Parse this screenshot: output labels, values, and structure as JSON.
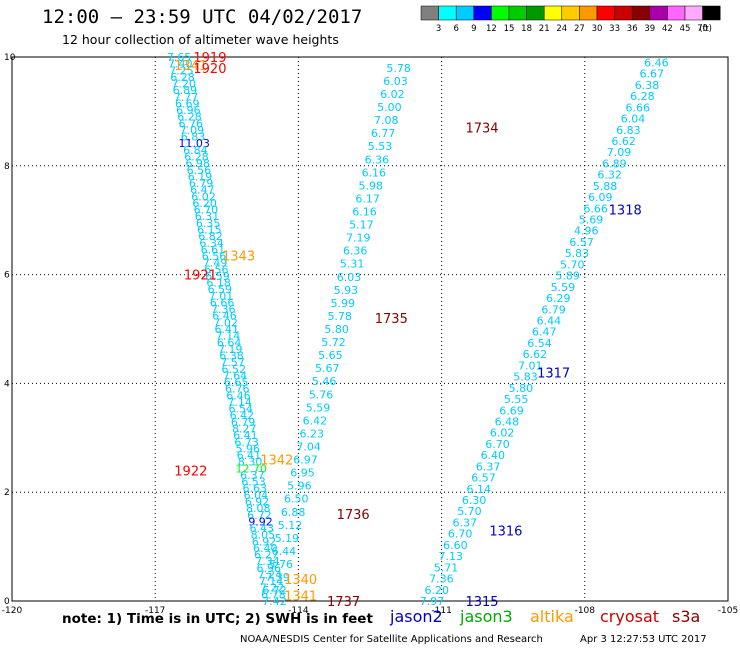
{
  "title": "12:00 – 23:59 UTC 04/02/2017",
  "subtitle": "12 hour collection of altimeter wave heights",
  "note": "note: 1) Time is in UTC; 2) SWH is in feet",
  "credit": "NOAA/NESDIS Center for Satellite Applications and Research",
  "timestamp": "Apr  3 12:27:53 UTC 2017",
  "satellites": [
    {
      "name": "jason2",
      "color": "#0000cc"
    },
    {
      "name": "jason3",
      "color": "#00aa00"
    },
    {
      "name": "altika",
      "color": "#ff9900"
    },
    {
      "name": "cryosat",
      "color": "#cc0000"
    },
    {
      "name": "s3a",
      "color": "#880000"
    }
  ],
  "colorbar": {
    "unit": "(ft)",
    "labels": [
      "3",
      "6",
      "9",
      "12",
      "15",
      "18",
      "21",
      "24",
      "27",
      "30",
      "33",
      "36",
      "39",
      "42",
      "45",
      "70"
    ],
    "colors": [
      "#808080",
      "#00ffff",
      "#00ccff",
      "#0000ff",
      "#00ff00",
      "#00cc00",
      "#009900",
      "#ffff00",
      "#ffcc00",
      "#ff9900",
      "#ff0000",
      "#cc0000",
      "#880000",
      "#aa00aa",
      "#ff66ff",
      "#ffaaff",
      "#000000"
    ]
  },
  "chart_data": {
    "type": "scatter",
    "xlim": [
      -120,
      -105
    ],
    "ylim": [
      0,
      10
    ],
    "x_ticks": [
      "-120",
      "-117",
      "-114",
      "-111",
      "-108",
      "-105"
    ],
    "y_ticks": [
      "0",
      "2",
      "4",
      "6",
      "8",
      "10"
    ],
    "grid": true,
    "tracks": [
      {
        "values": [
          "7.65",
          "7.40",
          "7.25",
          "6.28",
          "7.20",
          "6.89",
          "7.77",
          "6.69",
          "6.96",
          "6.28",
          "6.76",
          "7.09",
          "6.83",
          "11.03",
          "6.84",
          "6.28",
          "6.98",
          "6.56",
          "6.19",
          "6.79",
          "6.47",
          "6.02",
          "6.20",
          "6.70",
          "6.31",
          "6.35",
          "6.15",
          "6.82",
          "6.34",
          "6.61",
          "6.56",
          "7.49",
          "6.56",
          "6.59",
          "6.18",
          "6.59",
          "7.01",
          "6.66",
          "7.36",
          "6.46",
          "7.02",
          "6.41",
          "7.14",
          "6.64",
          "7.19",
          "6.38",
          "7.57",
          "6.52",
          "7.64",
          "6.65",
          "6.76",
          "6.46",
          "7.14",
          "6.54",
          "6.42",
          "6.79",
          "8.27",
          "6.41",
          "6.73",
          "5.96",
          "6.41",
          "8.30",
          "12.70",
          "6.37",
          "6.53",
          "6.63",
          "6.04",
          "6.92",
          "8.08",
          "6.72",
          "9.92",
          "6.43",
          "8.05",
          "6.92",
          "6.40",
          "6.27",
          "7.34",
          "6.96",
          "7.24",
          "7.14",
          "7.22",
          "6.78",
          "7.42"
        ],
        "x0": -116.5,
        "y0": 10.0,
        "x1": -114.5,
        "y1": 0.0
      },
      {
        "values": [
          "5.78",
          "6.03",
          "6.02",
          "5.00",
          "7.08",
          "6.77",
          "5.53",
          "6.36",
          "6.16",
          "5.98",
          "6.17",
          "6.16",
          "5.17",
          "7.19",
          "6.36",
          "5.31",
          "6.03",
          "5.93",
          "5.99",
          "5.78",
          "5.80",
          "5.72",
          "5.65",
          "5.67",
          "5.46",
          "5.76",
          "5.59",
          "6.42",
          "6.23",
          "7.04",
          "6.97",
          "6.95",
          "5.96",
          "6.50",
          "6.88",
          "5.12",
          "5.19",
          "6.44",
          "5.76",
          "7.39",
          "6.72"
        ],
        "x0": -111.9,
        "y0": 9.8,
        "x1": -114.5,
        "y1": 0.2
      },
      {
        "values": [
          "6.46",
          "6.67",
          "6.38",
          "6.28",
          "6.66",
          "6.04",
          "6.83",
          "6.62",
          "7.09",
          "6.89",
          "6.32",
          "5.88",
          "6.09",
          "6.66",
          "5.69",
          "4.96",
          "6.57",
          "5.83",
          "5.70",
          "5.89",
          "5.59",
          "6.29",
          "6.79",
          "6.44",
          "6.47",
          "6.54",
          "6.62",
          "7.01",
          "5.83",
          "5.80",
          "5.55",
          "6.69",
          "6.48",
          "6.02",
          "6.70",
          "6.40",
          "6.37",
          "6.57",
          "6.14",
          "6.30",
          "5.70",
          "6.37",
          "6.70",
          "6.60",
          "7.13",
          "5.71",
          "7.36",
          "6.20",
          "7.97"
        ],
        "x0": -106.5,
        "y0": 9.9,
        "x1": -111.2,
        "y1": 0.0
      }
    ],
    "annotations": [
      {
        "text": "1919",
        "x": -116.2,
        "y": 10.0,
        "color": "#ff0000"
      },
      {
        "text": "1341",
        "x": -116.6,
        "y": 9.85,
        "color": "#ff9900"
      },
      {
        "text": "1920",
        "x": -116.2,
        "y": 9.8,
        "color": "#ff0000"
      },
      {
        "text": "1734",
        "x": -110.5,
        "y": 8.7,
        "color": "#880000"
      },
      {
        "text": "1318",
        "x": -107.5,
        "y": 7.2,
        "color": "#0000cc"
      },
      {
        "text": "1343",
        "x": -115.6,
        "y": 6.35,
        "color": "#ff9900"
      },
      {
        "text": "1921",
        "x": -116.4,
        "y": 6.0,
        "color": "#ff0000"
      },
      {
        "text": "1735",
        "x": -112.4,
        "y": 5.2,
        "color": "#880000"
      },
      {
        "text": "1317",
        "x": -109.0,
        "y": 4.2,
        "color": "#0000cc"
      },
      {
        "text": "1342",
        "x": -114.8,
        "y": 2.6,
        "color": "#ff9900"
      },
      {
        "text": "1922",
        "x": -116.6,
        "y": 2.4,
        "color": "#ff0000"
      },
      {
        "text": "1736",
        "x": -113.2,
        "y": 1.6,
        "color": "#880000"
      },
      {
        "text": "1316",
        "x": -110.0,
        "y": 1.3,
        "color": "#0000cc"
      },
      {
        "text": "1340",
        "x": -114.3,
        "y": 0.4,
        "color": "#ff9900"
      },
      {
        "text": "1341",
        "x": -114.3,
        "y": 0.1,
        "color": "#ff9900"
      },
      {
        "text": "1737",
        "x": -113.4,
        "y": 0.0,
        "color": "#880000"
      },
      {
        "text": "1315",
        "x": -110.5,
        "y": 0.0,
        "color": "#0000cc"
      }
    ]
  }
}
